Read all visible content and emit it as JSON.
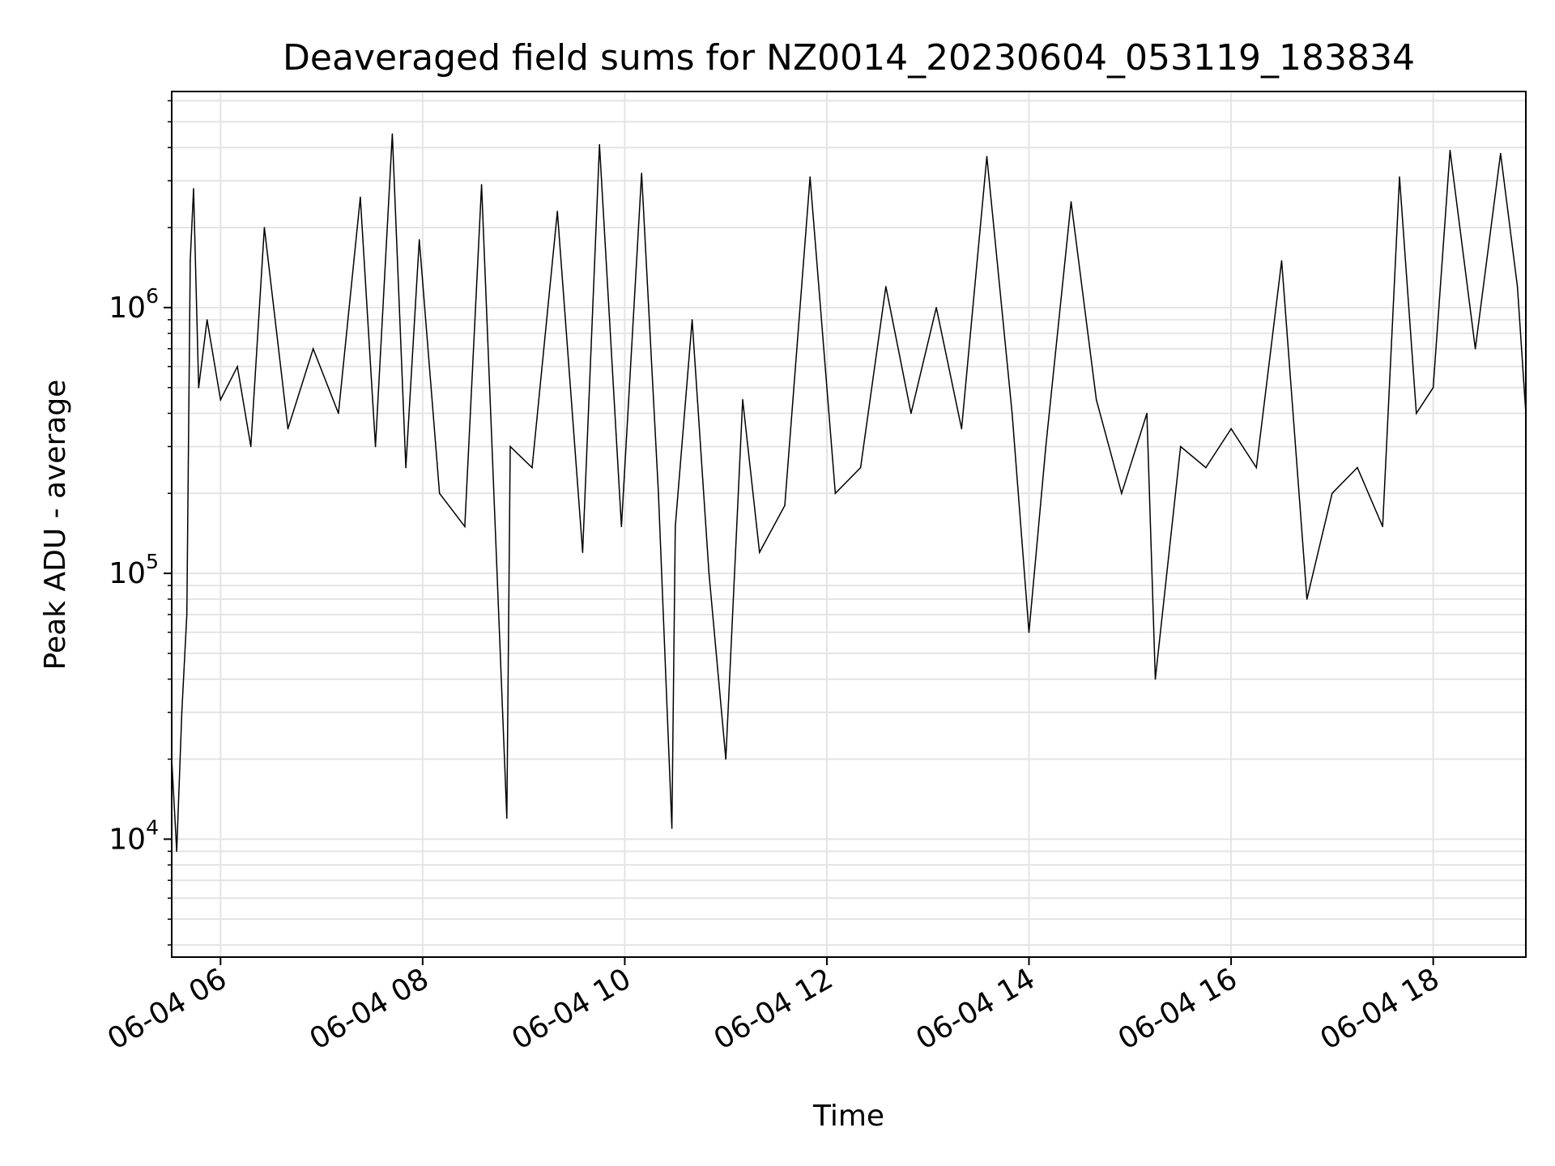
{
  "chart_data": {
    "type": "line",
    "title": "Deaveraged field sums for NZ0014_20230604_053119_183834",
    "xlabel": "Time",
    "ylabel": "Peak ADU - average",
    "y_scale": "log",
    "grid": true,
    "line_color": "#000000",
    "grid_color": "#e4e4e4",
    "xlim": [
      "2023-06-04 05:31",
      "2023-06-04 18:55"
    ],
    "ylim": [
      3600,
      6500000
    ],
    "x_ticks": [
      "2023-06-04 06:00",
      "2023-06-04 08:00",
      "2023-06-04 10:00",
      "2023-06-04 12:00",
      "2023-06-04 14:00",
      "2023-06-04 16:00",
      "2023-06-04 18:00"
    ],
    "x_tick_labels": [
      "06-04 06",
      "06-04 08",
      "06-04 10",
      "06-04 12",
      "06-04 14",
      "06-04 16",
      "06-04 18"
    ],
    "y_ticks": [
      {
        "value": 10000,
        "base": "10",
        "exp": "4"
      },
      {
        "value": 100000,
        "base": "10",
        "exp": "5"
      },
      {
        "value": 1000000,
        "base": "10",
        "exp": "6"
      }
    ],
    "series": [
      {
        "x": [
          "2023-06-04 05:31",
          "2023-06-04 05:34",
          "2023-06-04 05:37",
          "2023-06-04 05:40",
          "2023-06-04 05:42",
          "2023-06-04 05:44",
          "2023-06-04 05:47",
          "2023-06-04 05:52",
          "2023-06-04 06:00",
          "2023-06-04 06:10",
          "2023-06-04 06:18",
          "2023-06-04 06:26",
          "2023-06-04 06:40",
          "2023-06-04 06:55",
          "2023-06-04 07:10",
          "2023-06-04 07:23",
          "2023-06-04 07:32",
          "2023-06-04 07:42",
          "2023-06-04 07:50",
          "2023-06-04 07:58",
          "2023-06-04 08:10",
          "2023-06-04 08:25",
          "2023-06-04 08:35",
          "2023-06-04 08:50",
          "2023-06-04 08:52",
          "2023-06-04 09:05",
          "2023-06-04 09:20",
          "2023-06-04 09:35",
          "2023-06-04 09:45",
          "2023-06-04 09:58",
          "2023-06-04 10:10",
          "2023-06-04 10:20",
          "2023-06-04 10:28",
          "2023-06-04 10:30",
          "2023-06-04 10:40",
          "2023-06-04 10:50",
          "2023-06-04 11:00",
          "2023-06-04 11:10",
          "2023-06-04 11:20",
          "2023-06-04 11:35",
          "2023-06-04 11:50",
          "2023-06-04 12:05",
          "2023-06-04 12:20",
          "2023-06-04 12:35",
          "2023-06-04 12:50",
          "2023-06-04 13:05",
          "2023-06-04 13:20",
          "2023-06-04 13:35",
          "2023-06-04 13:50",
          "2023-06-04 14:00",
          "2023-06-04 14:10",
          "2023-06-04 14:25",
          "2023-06-04 14:40",
          "2023-06-04 14:55",
          "2023-06-04 15:10",
          "2023-06-04 15:15",
          "2023-06-04 15:30",
          "2023-06-04 15:45",
          "2023-06-04 16:00",
          "2023-06-04 16:15",
          "2023-06-04 16:30",
          "2023-06-04 16:45",
          "2023-06-04 17:00",
          "2023-06-04 17:15",
          "2023-06-04 17:30",
          "2023-06-04 17:40",
          "2023-06-04 17:50",
          "2023-06-04 18:00",
          "2023-06-04 18:10",
          "2023-06-04 18:25",
          "2023-06-04 18:40",
          "2023-06-04 18:50",
          "2023-06-04 18:55"
        ],
        "y": [
          20000,
          9000,
          30000,
          70000,
          1500000,
          2800000,
          500000,
          900000,
          450000,
          600000,
          300000,
          2000000,
          350000,
          700000,
          400000,
          2600000,
          300000,
          4500000,
          250000,
          1800000,
          200000,
          150000,
          2900000,
          12000,
          300000,
          250000,
          2300000,
          120000,
          4100000,
          150000,
          3200000,
          200000,
          11000,
          150000,
          900000,
          100000,
          20000,
          450000,
          120000,
          180000,
          3100000,
          200000,
          250000,
          1200000,
          400000,
          1000000,
          350000,
          3700000,
          400000,
          60000,
          300000,
          2500000,
          450000,
          200000,
          400000,
          40000,
          300000,
          250000,
          350000,
          250000,
          1500000,
          80000,
          200000,
          250000,
          150000,
          3100000,
          400000,
          500000,
          3900000,
          700000,
          3800000,
          1200000,
          400000
        ]
      }
    ]
  }
}
